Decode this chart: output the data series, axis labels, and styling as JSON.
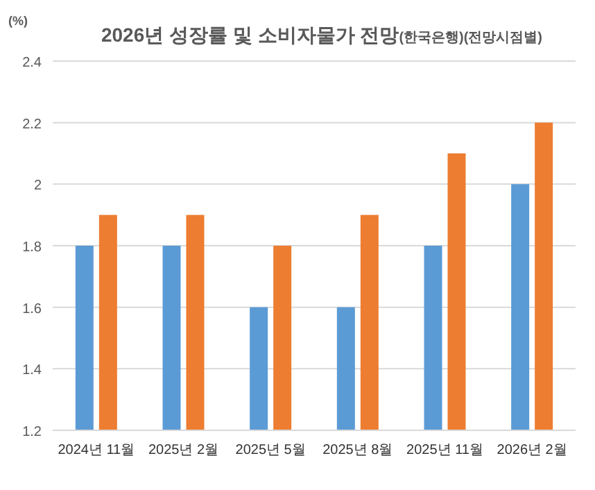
{
  "chart_data": {
    "type": "bar",
    "title": "2026년 성장률 및 소비자물가 전망",
    "subtitle": "(한국은행)(전망시점별)",
    "ylabel": "(%)",
    "categories": [
      "2024년 11월",
      "2025년 2월",
      "2025년 5월",
      "2025년 8월",
      "2025년 11월",
      "2026년 2월"
    ],
    "series": [
      {
        "color": "#5b9bd5",
        "values": [
          1.8,
          1.8,
          1.6,
          1.6,
          1.8,
          2.0
        ]
      },
      {
        "color": "#ed7d31",
        "values": [
          1.9,
          1.9,
          1.8,
          1.9,
          2.1,
          2.2
        ]
      }
    ],
    "ylim": [
      1.2,
      2.4
    ],
    "yticks": [
      1.2,
      1.4,
      1.6,
      1.8,
      2,
      2.2,
      2.4
    ],
    "grid": "y"
  }
}
